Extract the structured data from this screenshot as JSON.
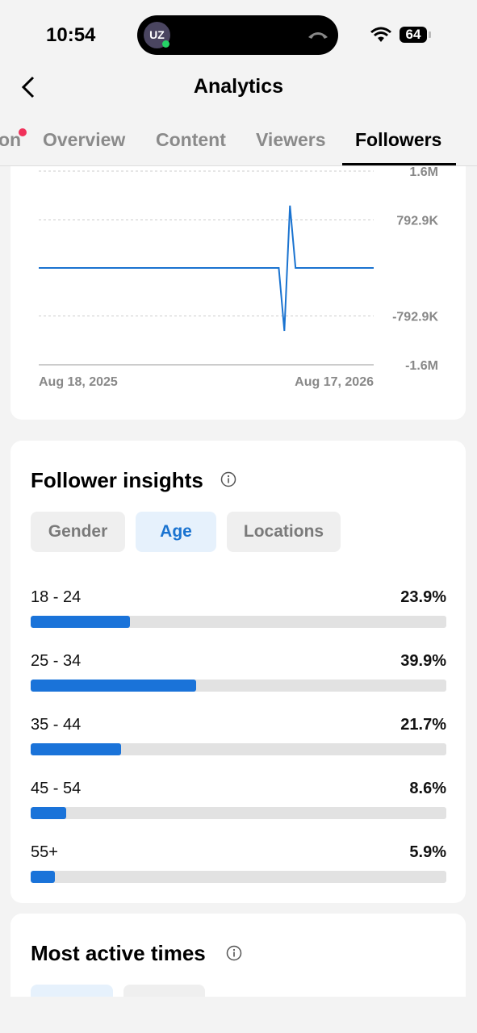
{
  "status_bar": {
    "time": "10:54",
    "avatar": "UZ",
    "battery": "64"
  },
  "header": {
    "title": "Analytics"
  },
  "tabs": [
    "on",
    "Overview",
    "Content",
    "Viewers",
    "Followers"
  ],
  "chart_data": {
    "type": "line",
    "categories": [
      "Aug 18, 2025",
      null,
      null,
      null,
      null,
      null,
      null,
      null,
      null,
      null,
      null,
      null,
      null,
      null,
      null,
      null,
      null,
      null,
      null,
      null,
      null,
      null,
      null,
      null,
      null,
      null,
      null,
      null,
      null,
      null,
      null,
      null,
      null,
      null,
      null,
      null,
      null,
      null,
      null,
      null,
      null,
      null,
      null,
      null,
      null,
      null,
      null,
      null,
      null,
      null,
      null,
      null,
      null,
      null,
      null,
      null,
      null,
      null,
      null,
      null,
      "Aug 17, 2026"
    ],
    "values": [
      0,
      0,
      0,
      0,
      0,
      0,
      0,
      0,
      0,
      0,
      0,
      0,
      0,
      0,
      0,
      0,
      0,
      0,
      0,
      0,
      0,
      0,
      0,
      0,
      0,
      0,
      0,
      0,
      0,
      0,
      0,
      0,
      0,
      0,
      0,
      0,
      0,
      0,
      0,
      0,
      0,
      0,
      0,
      0,
      -1040000,
      1030000,
      0,
      0,
      0,
      0,
      0,
      0,
      0,
      0,
      0,
      0,
      0,
      0,
      0,
      0,
      0
    ],
    "color": "#1a73d0",
    "ylim": [
      -1600000,
      1600000
    ],
    "yticks": [
      {
        "value": 1600000,
        "label": "1.6M"
      },
      {
        "value": 792900,
        "label": "792.9K"
      },
      {
        "value": -792900,
        "label": "-792.9K"
      },
      {
        "value": -1600000,
        "label": "-1.6M"
      }
    ],
    "grid": true
  },
  "follower_insights": {
    "title": "Follower insights",
    "filters": [
      "Gender",
      "Age",
      "Locations"
    ],
    "selected": "Age",
    "categories": [
      "18 - 24",
      "25 - 34",
      "35 - 44",
      "45 - 54",
      "55+"
    ],
    "values": [
      23.9,
      39.9,
      21.7,
      8.6,
      5.9
    ],
    "value_labels": [
      "23.9%",
      "39.9%",
      "21.7%",
      "8.6%",
      "5.9%"
    ],
    "xlim": [
      0,
      100
    ]
  },
  "most_active_times": {
    "title": "Most active times"
  }
}
